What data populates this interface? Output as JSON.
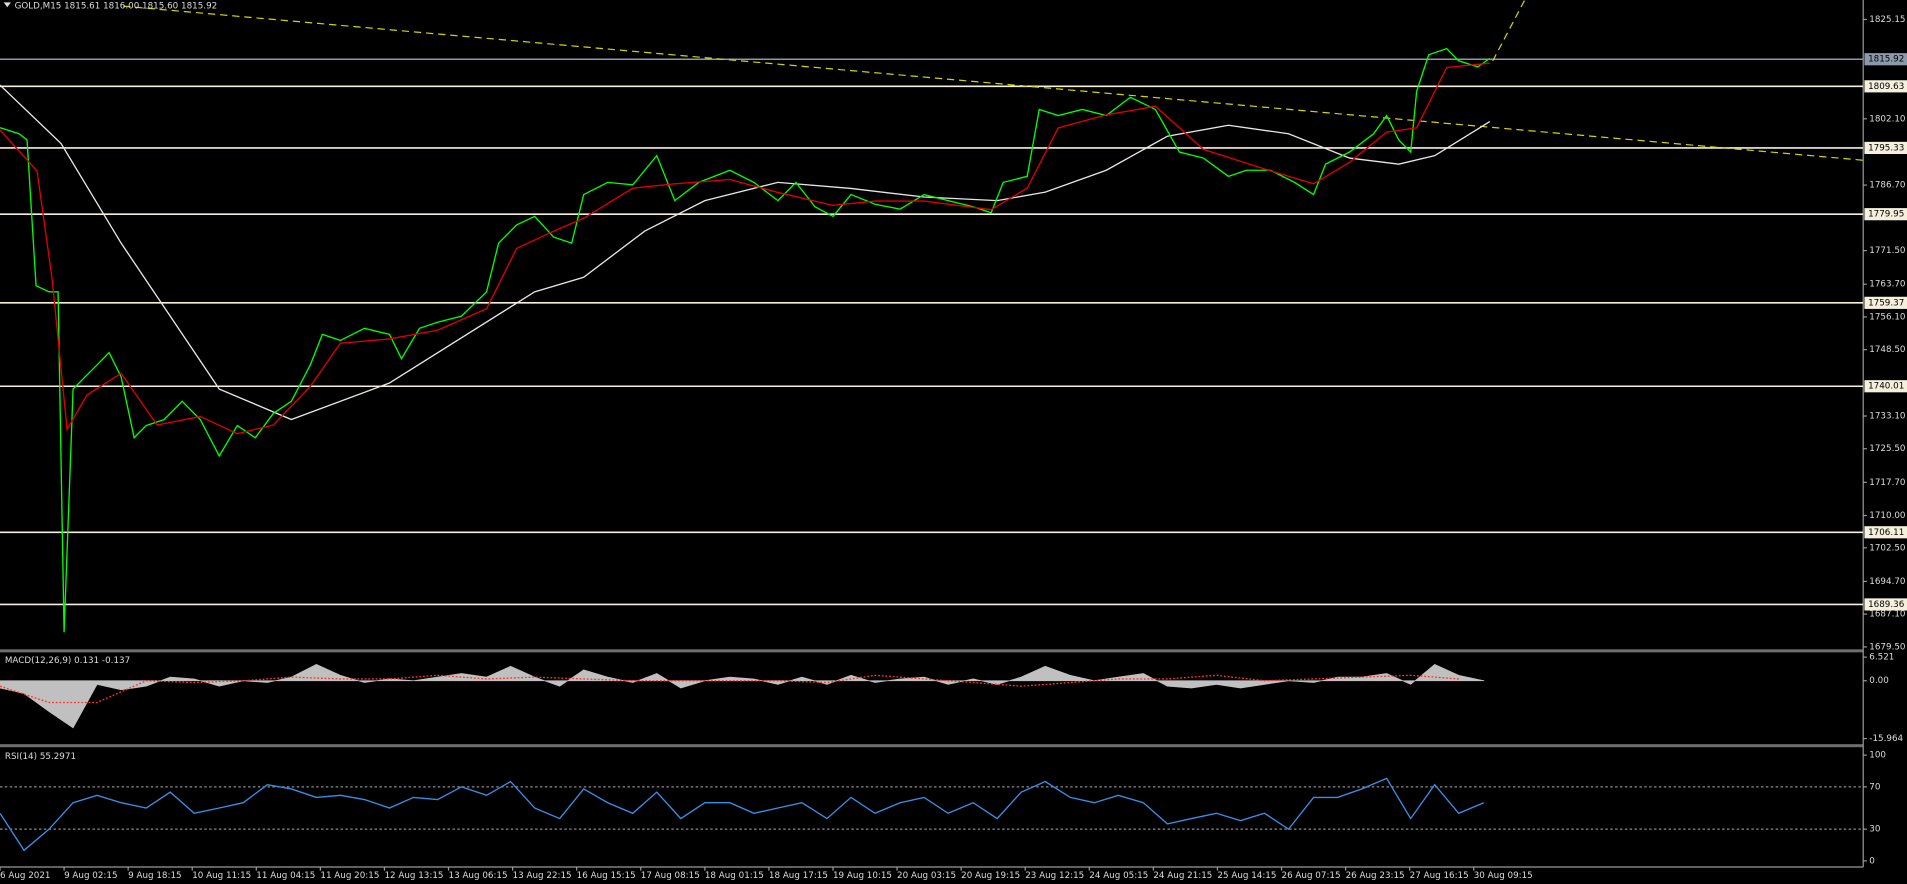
{
  "chart_data": [
    {
      "type": "line",
      "title": "GOLD,M15  1815.61 1816.00 1815.60 1815.92",
      "xlim": [
        3,
        1864
      ],
      "ylim": [
        1678.94,
        1829.67
      ],
      "yticks": [
        {
          "value": 1825.15,
          "label": "1825.15"
        },
        {
          "value": 1802.1,
          "label": "1802.10"
        },
        {
          "value": 1786.7,
          "label": "1786.70"
        },
        {
          "value": 1771.5,
          "label": "1771.50"
        },
        {
          "value": 1763.7,
          "label": "1763.70"
        },
        {
          "value": 1756.1,
          "label": "1756.10"
        },
        {
          "value": 1748.5,
          "label": "1748.50"
        },
        {
          "value": 1733.1,
          "label": "1733.10"
        },
        {
          "value": 1725.5,
          "label": "1725.50"
        },
        {
          "value": 1717.7,
          "label": "1717.70"
        },
        {
          "value": 1710,
          "label": "1710.00"
        },
        {
          "value": 1702.5,
          "label": "1702.50"
        },
        {
          "value": 1694.7,
          "label": "1694.70"
        },
        {
          "value": 1687.1,
          "label": "1687.10"
        },
        {
          "value": 1679.5,
          "label": "1679.50"
        }
      ],
      "levels": [
        {
          "value": 1815.92,
          "color": "#8a9aaa"
        },
        {
          "value": 1809.63,
          "color": "#f5f0dc"
        },
        {
          "value": 1795.33,
          "color": "#f5f0dc"
        },
        {
          "value": 1779.95,
          "color": "#f5f0dc"
        },
        {
          "value": 1759.37,
          "color": "#f5f0dc"
        },
        {
          "value": 1740.01,
          "color": "#f5f0dc"
        },
        {
          "value": 1706.11,
          "color": "#f5f0dc"
        },
        {
          "value": 1689.36,
          "color": "#f5f0dc"
        }
      ],
      "trendlines": [
        {
          "color": "#d4d400",
          "x": [
            126,
            1864
          ],
          "values": [
            1828.25,
            1792.47
          ]
        },
        {
          "color": "#d4d400",
          "x": [
            1494,
            1531
          ],
          "values": [
            1815.55,
            1831.92
          ]
        }
      ],
      "series": [
        {
          "color": "#e6e6e6",
          "x": [
            3,
            64,
            124,
            222,
            294,
            392,
            537,
            586,
            647,
            707,
            780,
            853,
            926,
            999,
            1047,
            1108,
            1169,
            1230,
            1290,
            1351,
            1400,
            1436,
            1491
          ],
          "values": [
            1809.91,
            1796.36,
            1773.22,
            1739.35,
            1732.29,
            1740.76,
            1761.93,
            1765.31,
            1776.04,
            1783.1,
            1787.33,
            1785.92,
            1783.94,
            1783.1,
            1785.07,
            1790.15,
            1798.05,
            1800.59,
            1798.62,
            1792.97,
            1791.56,
            1793.54,
            1801.44
          ]
        },
        {
          "color": "#00ff00",
          "x": [
            3,
            22,
            30,
            39,
            52,
            61,
            67,
            76,
            88,
            100,
            112,
            124,
            137,
            149,
            167,
            185,
            203,
            222,
            240,
            258,
            276,
            294,
            313,
            325,
            343,
            367,
            392,
            404,
            422,
            440,
            464,
            489,
            501,
            519,
            537,
            556,
            574,
            586,
            610,
            635,
            659,
            677,
            701,
            732,
            756,
            780,
            798,
            817,
            835,
            853,
            877,
            902,
            926,
            950,
            975,
            993,
            1005,
            1029,
            1041,
            1060,
            1084,
            1108,
            1132,
            1157,
            1181,
            1205,
            1230,
            1248,
            1272,
            1296,
            1315,
            1327,
            1351,
            1375,
            1388,
            1400,
            1412,
            1418,
            1430,
            1448,
            1460,
            1479,
            1491
          ],
          "values": [
            1800.03,
            1798.62,
            1797.21,
            1763.34,
            1761.93,
            1761.93,
            1682.9,
            1739.35,
            1742.17,
            1744.99,
            1747.81,
            1742.17,
            1728.06,
            1730.88,
            1732.29,
            1736.52,
            1732.29,
            1723.82,
            1730.88,
            1728.06,
            1733.7,
            1736.52,
            1744.99,
            1752.05,
            1750.64,
            1753.46,
            1752.05,
            1746.4,
            1753.46,
            1754.87,
            1756.28,
            1761.93,
            1773.22,
            1777.45,
            1779.43,
            1774.63,
            1773.22,
            1784.51,
            1787.33,
            1786.76,
            1793.54,
            1783.1,
            1787.33,
            1790.15,
            1787.33,
            1783.1,
            1787.33,
            1781.68,
            1779.43,
            1784.51,
            1782.25,
            1781.12,
            1784.51,
            1783.1,
            1781.68,
            1780.27,
            1787.33,
            1788.74,
            1804.26,
            1802.85,
            1804.26,
            1802.85,
            1807.09,
            1804.26,
            1794.38,
            1792.97,
            1788.74,
            1790.15,
            1790.15,
            1787.33,
            1784.51,
            1791.56,
            1794.38,
            1798.62,
            1802.85,
            1797.21,
            1794.38,
            1808.5,
            1816.96,
            1818.38,
            1815.55,
            1814.14,
            1816.12
          ]
        },
        {
          "color": "#e00000",
          "x": [
            3,
            40,
            55,
            70,
            90,
            124,
            160,
            203,
            240,
            276,
            313,
            343,
            392,
            440,
            489,
            519,
            556,
            586,
            635,
            677,
            732,
            780,
            835,
            877,
            926,
            993,
            1029,
            1060,
            1108,
            1157,
            1205,
            1272,
            1315,
            1351,
            1388,
            1418,
            1448,
            1491
          ],
          "values": [
            1799.5,
            1790,
            1765,
            1730,
            1738,
            1743,
            1731,
            1733,
            1729,
            1731,
            1740,
            1750,
            1751,
            1753,
            1758,
            1772,
            1776,
            1779,
            1786,
            1787,
            1788,
            1785,
            1782,
            1783,
            1783,
            1781,
            1786,
            1800,
            1803,
            1805,
            1795,
            1790,
            1787,
            1792,
            1799,
            1800,
            1814,
            1815
          ]
        }
      ]
    },
    {
      "type": "line",
      "title": "MACD(12,26,9) 0.131 -0.137",
      "xlim": [
        3,
        1864
      ],
      "ylim": [
        -17.5,
        8.0
      ],
      "yticks": [
        6.521,
        {
          "value": 0,
          "label": "0.00"
        },
        -15.964
      ],
      "series": [
        {
          "color": "#c0c0c0",
          "style": "histogram",
          "x": [
            3,
            27,
            52,
            76,
            100,
            124,
            149,
            173,
            197,
            222,
            246,
            270,
            294,
            319,
            343,
            367,
            392,
            416,
            440,
            464,
            489,
            513,
            537,
            562,
            586,
            610,
            635,
            659,
            683,
            707,
            732,
            756,
            780,
            804,
            829,
            853,
            877,
            902,
            926,
            950,
            975,
            999,
            1023,
            1047,
            1072,
            1096,
            1120,
            1145,
            1169,
            1193,
            1218,
            1242,
            1266,
            1290,
            1315,
            1339,
            1363,
            1388,
            1412,
            1436,
            1460,
            1485
          ],
          "values": [
            -2.0,
            -3.5,
            -8.5,
            -13.0,
            -1.0,
            -2.5,
            -1.5,
            1.0,
            0.5,
            -1.5,
            0.0,
            -0.5,
            1.0,
            4.5,
            1.5,
            -0.5,
            0.5,
            0.0,
            1.0,
            2.0,
            1.0,
            4.0,
            1.0,
            -1.5,
            3.0,
            1.0,
            -0.5,
            2.0,
            -2.0,
            0.0,
            1.0,
            0.5,
            -1.0,
            1.0,
            -1.0,
            1.5,
            -0.5,
            0.5,
            1.0,
            -1.0,
            0.5,
            -1.0,
            1.0,
            4.0,
            1.5,
            0.0,
            1.0,
            2.0,
            -1.5,
            -2.0,
            -1.0,
            -2.0,
            -1.0,
            0.0,
            -0.5,
            1.0,
            1.0,
            2.0,
            -1.0,
            4.5,
            1.5,
            0.0
          ]
        },
        {
          "color": "#ff3030",
          "style": "dotted",
          "x": [
            3,
            52,
            100,
            149,
            197,
            246,
            294,
            343,
            392,
            440,
            489,
            537,
            586,
            635,
            683,
            732,
            780,
            829,
            877,
            926,
            975,
            1023,
            1072,
            1120,
            1169,
            1218,
            1266,
            1315,
            1363,
            1412,
            1460
          ],
          "values": [
            -1.5,
            -6,
            -6,
            0,
            -0.5,
            0,
            1,
            0.5,
            0.5,
            1.5,
            0.5,
            1,
            0.5,
            0,
            0,
            0,
            0,
            -0.5,
            1.5,
            0.5,
            -0.5,
            -1.5,
            -0.5,
            0.5,
            0.5,
            1.5,
            0,
            0.5,
            1,
            1.5,
            0.5
          ]
        }
      ]
    },
    {
      "type": "line",
      "title": "RSI(14) 55.2971",
      "xlim": [
        3,
        1864
      ],
      "ylim": [
        0,
        100
      ],
      "yticks": [
        0,
        30,
        70,
        100
      ],
      "levels": [
        30,
        70
      ],
      "xticks": [
        {
          "value": 3,
          "label": "6 Aug 2021"
        },
        {
          "value": 67,
          "label": "9 Aug 02:15"
        },
        {
          "value": 131,
          "label": "9 Aug 18:15"
        },
        {
          "value": 195,
          "label": "10 Aug 11:15"
        },
        {
          "value": 259,
          "label": "11 Aug 04:15"
        },
        {
          "value": 323,
          "label": "11 Aug 20:15"
        },
        {
          "value": 387,
          "label": "12 Aug 13:15"
        },
        {
          "value": 451,
          "label": "13 Aug 06:15"
        },
        {
          "value": 515,
          "label": "13 Aug 22:15"
        },
        {
          "value": 579,
          "label": "16 Aug 15:15"
        },
        {
          "value": 643,
          "label": "17 Aug 08:15"
        },
        {
          "value": 707,
          "label": "18 Aug 01:15"
        },
        {
          "value": 771,
          "label": "18 Aug 17:15"
        },
        {
          "value": 835,
          "label": "19 Aug 10:15"
        },
        {
          "value": 899,
          "label": "20 Aug 03:15"
        },
        {
          "value": 963,
          "label": "20 Aug 19:15"
        },
        {
          "value": 1027,
          "label": "23 Aug 12:15"
        },
        {
          "value": 1091,
          "label": "24 Aug 05:15"
        },
        {
          "value": 1155,
          "label": "24 Aug 21:15"
        },
        {
          "value": 1219,
          "label": "25 Aug 14:15"
        },
        {
          "value": 1283,
          "label": "26 Aug 07:15"
        },
        {
          "value": 1347,
          "label": "26 Aug 23:15"
        },
        {
          "value": 1411,
          "label": "27 Aug 16:15"
        },
        {
          "value": 1475,
          "label": "30 Aug 09:15"
        }
      ],
      "series": [
        {
          "color": "#3a8ee6",
          "x": [
            3,
            27,
            52,
            76,
            100,
            124,
            149,
            173,
            197,
            222,
            246,
            270,
            294,
            319,
            343,
            367,
            392,
            416,
            440,
            464,
            489,
            513,
            537,
            562,
            586,
            610,
            635,
            659,
            683,
            707,
            732,
            756,
            780,
            804,
            829,
            853,
            877,
            902,
            926,
            950,
            975,
            999,
            1023,
            1047,
            1072,
            1096,
            1120,
            1145,
            1169,
            1193,
            1218,
            1242,
            1266,
            1290,
            1315,
            1339,
            1363,
            1388,
            1412,
            1436,
            1460,
            1485
          ],
          "values": [
            45,
            10,
            30,
            55,
            62,
            55,
            50,
            65,
            45,
            50,
            55,
            72,
            68,
            60,
            62,
            58,
            50,
            60,
            58,
            70,
            62,
            75,
            50,
            40,
            68,
            55,
            45,
            65,
            40,
            55,
            55,
            45,
            50,
            55,
            40,
            60,
            45,
            55,
            60,
            45,
            55,
            40,
            65,
            75,
            60,
            55,
            62,
            55,
            35,
            40,
            45,
            38,
            45,
            30,
            60,
            60,
            68,
            78,
            40,
            72,
            45,
            55
          ]
        }
      ]
    }
  ]
}
